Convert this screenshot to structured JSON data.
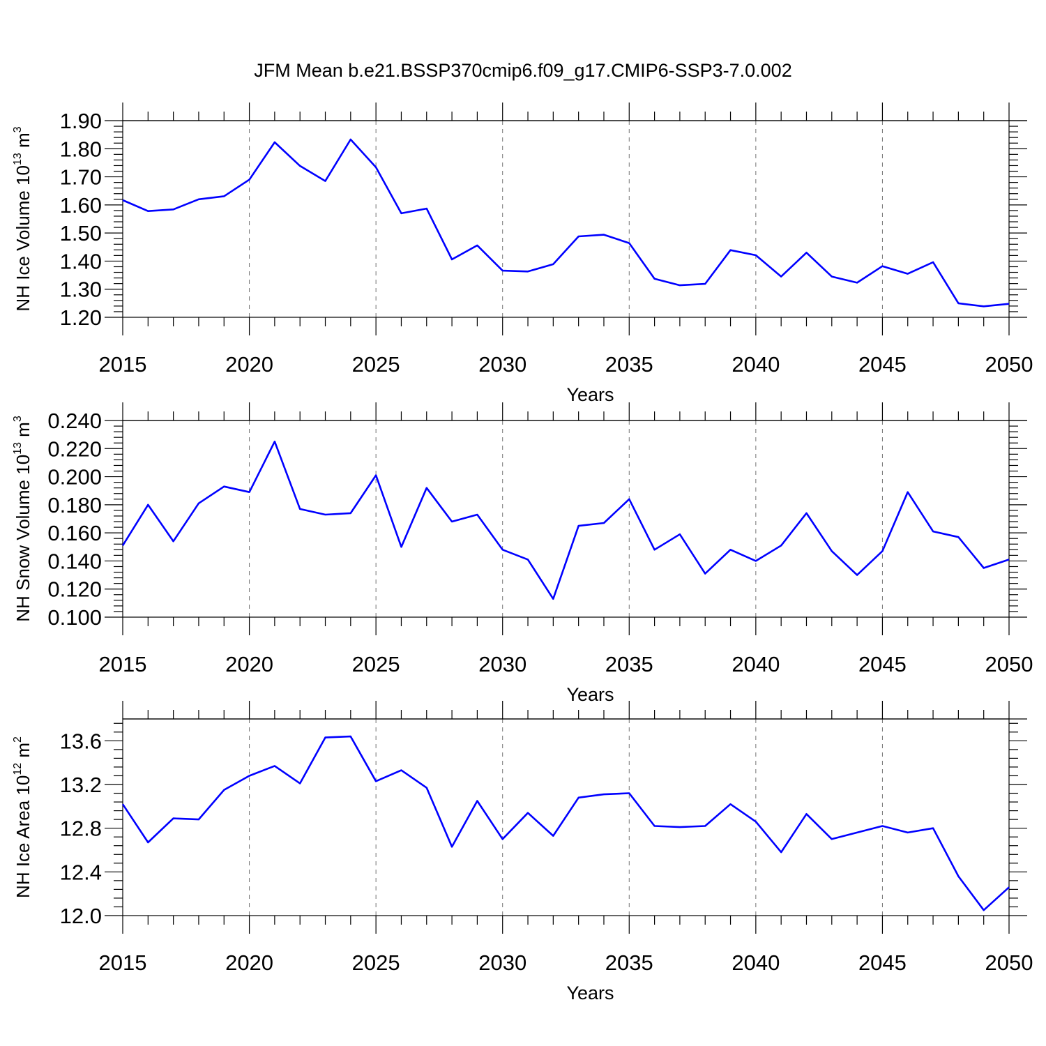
{
  "title": "JFM Mean b.e21.BSSP370cmip6.f09_g17.CMIP6-SSP3-7.0.002",
  "chart_data": [
    {
      "type": "line",
      "xlabel": "Years",
      "ylabel": {
        "main": "NH Ice Volume 10",
        "exp": "13",
        "unit": " m",
        "unit_exp": "3"
      },
      "xlim": [
        2015,
        2050
      ],
      "ylim": [
        1.2,
        1.9
      ],
      "x_ticks": [
        2015,
        2020,
        2025,
        2030,
        2035,
        2040,
        2045,
        2050
      ],
      "y_ticks": [
        "1.20",
        "1.30",
        "1.40",
        "1.50",
        "1.60",
        "1.70",
        "1.80",
        "1.90"
      ],
      "grid": "vertical dashed at major x ticks",
      "color": "#0000ff",
      "x": [
        2015,
        2016,
        2017,
        2018,
        2019,
        2020,
        2021,
        2022,
        2023,
        2024,
        2025,
        2026,
        2027,
        2028,
        2029,
        2030,
        2031,
        2032,
        2033,
        2034,
        2035,
        2036,
        2037,
        2038,
        2039,
        2040,
        2041,
        2042,
        2043,
        2044,
        2045,
        2046,
        2047,
        2048,
        2049,
        2050
      ],
      "values": [
        1.617,
        1.578,
        1.584,
        1.62,
        1.631,
        1.69,
        1.823,
        1.739,
        1.685,
        1.833,
        1.734,
        1.57,
        1.587,
        1.406,
        1.456,
        1.366,
        1.363,
        1.389,
        1.488,
        1.494,
        1.464,
        1.337,
        1.314,
        1.319,
        1.439,
        1.421,
        1.345,
        1.43,
        1.345,
        1.323,
        1.382,
        1.355,
        1.396,
        1.25,
        1.239,
        1.248
      ]
    },
    {
      "type": "line",
      "xlabel": "Years",
      "ylabel": {
        "main": "NH Snow Volume 10",
        "exp": "13",
        "unit": " m",
        "unit_exp": "3"
      },
      "xlim": [
        2015,
        2050
      ],
      "ylim": [
        0.1,
        0.24
      ],
      "x_ticks": [
        2015,
        2020,
        2025,
        2030,
        2035,
        2040,
        2045,
        2050
      ],
      "y_ticks": [
        "0.100",
        "0.120",
        "0.140",
        "0.160",
        "0.180",
        "0.200",
        "0.220",
        "0.240"
      ],
      "grid": "vertical dashed at major x ticks",
      "color": "#0000ff",
      "x": [
        2015,
        2016,
        2017,
        2018,
        2019,
        2020,
        2021,
        2022,
        2023,
        2024,
        2025,
        2026,
        2027,
        2028,
        2029,
        2030,
        2031,
        2032,
        2033,
        2034,
        2035,
        2036,
        2037,
        2038,
        2039,
        2040,
        2041,
        2042,
        2043,
        2044,
        2045,
        2046,
        2047,
        2048,
        2049,
        2050
      ],
      "values": [
        0.151,
        0.18,
        0.154,
        0.181,
        0.193,
        0.189,
        0.225,
        0.177,
        0.173,
        0.174,
        0.201,
        0.15,
        0.192,
        0.168,
        0.173,
        0.148,
        0.141,
        0.113,
        0.165,
        0.167,
        0.184,
        0.148,
        0.159,
        0.131,
        0.148,
        0.14,
        0.151,
        0.174,
        0.147,
        0.13,
        0.147,
        0.189,
        0.161,
        0.157,
        0.135,
        0.141
      ]
    },
    {
      "type": "line",
      "xlabel": "Years",
      "ylabel": {
        "main": "NH Ice Area 10",
        "exp": "12",
        "unit": " m",
        "unit_exp": "2"
      },
      "xlim": [
        2015,
        2050
      ],
      "ylim": [
        12.0,
        13.8
      ],
      "x_ticks": [
        2015,
        2020,
        2025,
        2030,
        2035,
        2040,
        2045,
        2050
      ],
      "y_ticks": [
        "12.0",
        "12.4",
        "12.8",
        "13.2",
        "13.6"
      ],
      "y_tick_values": [
        12.0,
        12.4,
        12.8,
        13.2,
        13.6
      ],
      "grid": "vertical dashed at major x ticks",
      "color": "#0000ff",
      "x": [
        2015,
        2016,
        2017,
        2018,
        2019,
        2020,
        2021,
        2022,
        2023,
        2024,
        2025,
        2026,
        2027,
        2028,
        2029,
        2030,
        2031,
        2032,
        2033,
        2034,
        2035,
        2036,
        2037,
        2038,
        2039,
        2040,
        2041,
        2042,
        2043,
        2044,
        2045,
        2046,
        2047,
        2048,
        2049,
        2050
      ],
      "values": [
        13.02,
        12.67,
        12.89,
        12.88,
        13.15,
        13.28,
        13.37,
        13.21,
        13.63,
        13.64,
        13.23,
        13.33,
        13.17,
        12.63,
        13.05,
        12.7,
        12.94,
        12.73,
        13.08,
        13.11,
        13.12,
        12.82,
        12.81,
        12.82,
        13.02,
        12.86,
        12.58,
        12.93,
        12.7,
        12.76,
        12.82,
        12.76,
        12.8,
        12.36,
        12.05,
        12.26
      ]
    }
  ]
}
